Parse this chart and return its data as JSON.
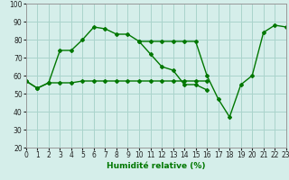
{
  "xlabel": "Humidité relative (%)",
  "bg_color": "#d5eeea",
  "grid_color": "#aad4cc",
  "line_color": "#007700",
  "xlim": [
    0,
    23
  ],
  "ylim": [
    20,
    100
  ],
  "yticks": [
    20,
    30,
    40,
    50,
    60,
    70,
    80,
    90,
    100
  ],
  "xticks": [
    0,
    1,
    2,
    3,
    4,
    5,
    6,
    7,
    8,
    9,
    10,
    11,
    12,
    13,
    14,
    15,
    16,
    17,
    18,
    19,
    20,
    21,
    22,
    23
  ],
  "line1_x": [
    0,
    1,
    2,
    3,
    4,
    5,
    6,
    7,
    8,
    9,
    10,
    11,
    12,
    13,
    14,
    15,
    16
  ],
  "line1_y": [
    57,
    53,
    56,
    74,
    74,
    80,
    87,
    86,
    83,
    83,
    79,
    72,
    65,
    63,
    55,
    55,
    52
  ],
  "line2_x": [
    0,
    1,
    2,
    3,
    4,
    5,
    6,
    7,
    8,
    9,
    10,
    11,
    12,
    13,
    14,
    15,
    16
  ],
  "line2_y": [
    57,
    53,
    56,
    56,
    56,
    57,
    57,
    57,
    57,
    57,
    57,
    57,
    57,
    57,
    57,
    57,
    57
  ],
  "line3_x": [
    10,
    11,
    12,
    13,
    14,
    15,
    16,
    17,
    18,
    19,
    20,
    21,
    22,
    23
  ],
  "line3_y": [
    79,
    79,
    79,
    79,
    79,
    79,
    60,
    47,
    37,
    55,
    60,
    84,
    88,
    87
  ]
}
